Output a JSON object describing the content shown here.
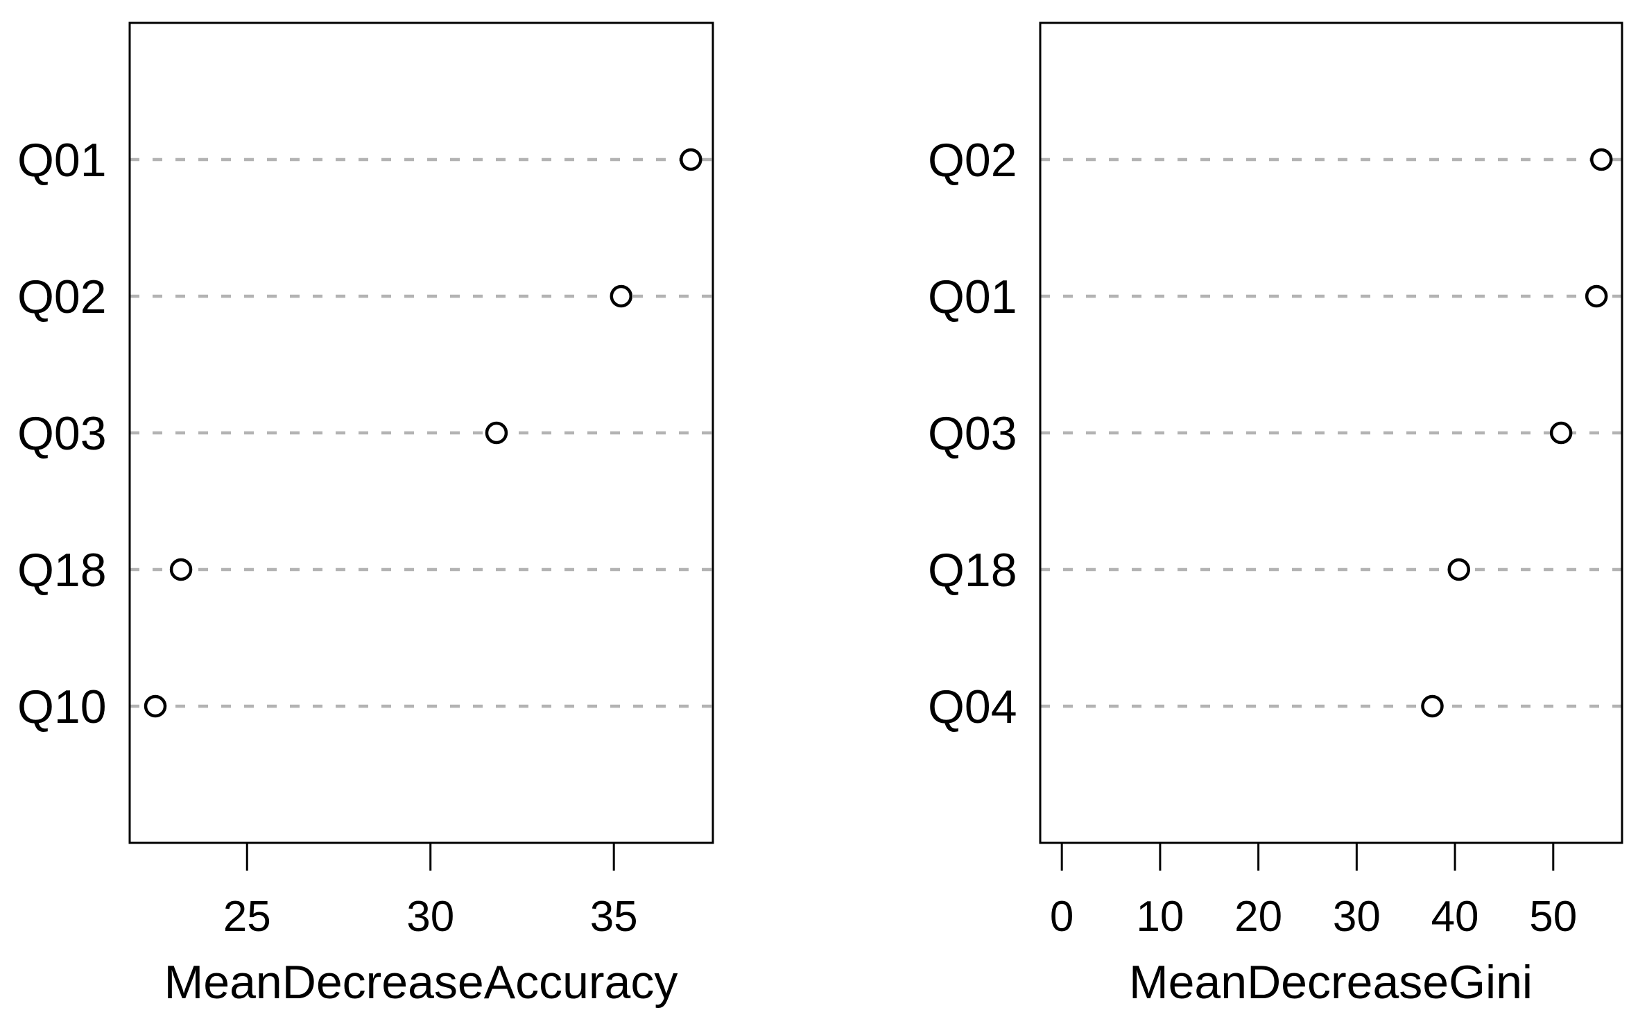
{
  "figure": {
    "background": "#ffffff",
    "colors": {
      "panel_border": "#000000",
      "grid_line": "#b3b3b3",
      "marker_stroke": "#000000",
      "marker_fill": "#ffffff",
      "text": "#000000"
    }
  },
  "chart_data": [
    {
      "type": "scatter",
      "subtype": "dotchart",
      "panel": "left",
      "categories_top_to_bottom": [
        "Q01",
        "Q02",
        "Q03",
        "Q18",
        "Q10"
      ],
      "values": [
        37.1,
        35.2,
        31.8,
        23.2,
        22.5
      ],
      "xlabel": "MeanDecreaseAccuracy",
      "xticks": [
        25,
        30,
        35
      ],
      "xlim": [
        21.8,
        37.7
      ],
      "grid": "horizontal dashed line per category",
      "legend": "none",
      "marker": "open-circle"
    },
    {
      "type": "scatter",
      "subtype": "dotchart",
      "panel": "right",
      "categories_top_to_bottom": [
        "Q02",
        "Q01",
        "Q03",
        "Q18",
        "Q04"
      ],
      "values": [
        54.9,
        54.4,
        50.8,
        40.4,
        37.7
      ],
      "xlabel": "MeanDecreaseGini",
      "xticks": [
        0,
        10,
        20,
        30,
        40,
        50
      ],
      "xlim": [
        -2.2,
        57.0
      ],
      "grid": "horizontal dashed line per category",
      "legend": "none",
      "marker": "open-circle"
    }
  ]
}
